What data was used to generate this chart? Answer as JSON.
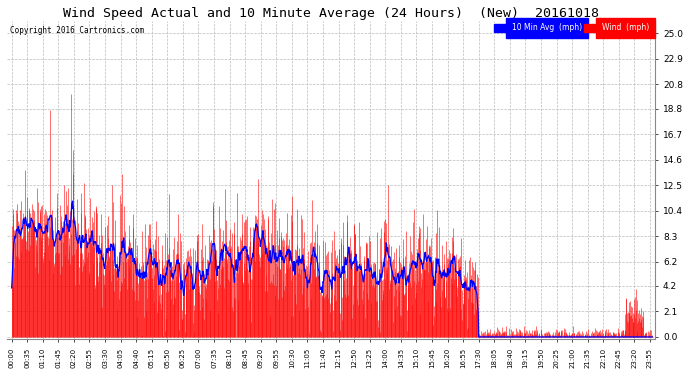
{
  "title": "Wind Speed Actual and 10 Minute Average (24 Hours)  (New)  20161018",
  "copyright": "Copyright 2016 Cartronics.com",
  "legend_blue_label": "10 Min Avg  (mph)",
  "legend_red_label": "Wind  (mph)",
  "background_color": "#ffffff",
  "plot_bg_color": "#ffffff",
  "title_fontsize": 9.5,
  "yticks": [
    0.0,
    2.1,
    4.2,
    6.2,
    8.3,
    10.4,
    12.5,
    14.6,
    16.7,
    18.8,
    20.8,
    22.9,
    25.0
  ],
  "ylim": [
    -0.2,
    26.0
  ],
  "grid_color": "#bbbbbb",
  "wind_color": "#ff0000",
  "avg_color": "#0000ff"
}
